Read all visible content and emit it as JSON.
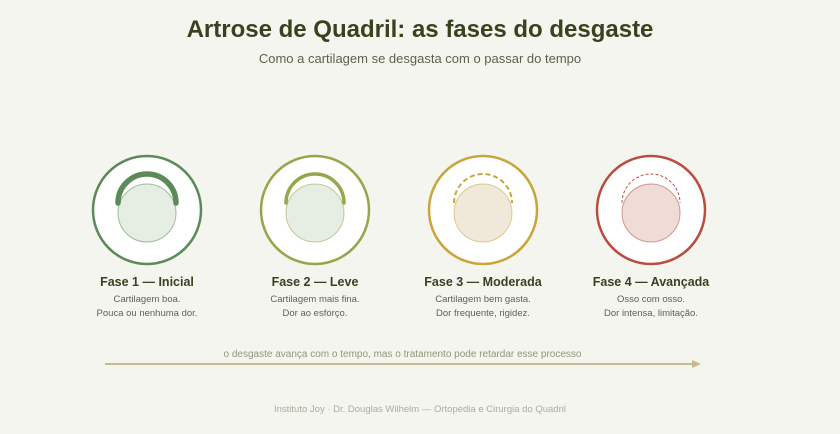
{
  "title": "Artrose de Quadril: as fases do desgaste",
  "subtitle": "Como a cartilagem se desgasta com o passar do tempo",
  "stages": [
    {
      "title": "Fase 1 — Inicial",
      "line1": "Cartilagem boa.",
      "line2": "Pouca ou nenhuma dor.",
      "ring_color": "#5c8a58",
      "head_fill": "#e6eee3",
      "arc_color": "#5c8a58",
      "arc_style": "thick"
    },
    {
      "title": "Fase 2 — Leve",
      "line1": "Cartilagem mais fina.",
      "line2": "Dor ao esforço.",
      "ring_color": "#93a84a",
      "head_fill": "#e6eee3",
      "arc_color": "#93a84a",
      "arc_style": "thin"
    },
    {
      "title": "Fase 3 — Moderada",
      "line1": "Cartilagem bem gasta.",
      "line2": "Dor frequente, rigidez.",
      "ring_color": "#c9a53a",
      "head_fill": "#f0e8d8",
      "arc_color": "#c9a53a",
      "arc_style": "dashed"
    },
    {
      "title": "Fase 4 — Avançada",
      "line1": "Osso com osso.",
      "line2": "Dor intensa, limitação.",
      "ring_color": "#b84e3f",
      "head_fill": "#f0dcd6",
      "arc_color": "#b84e3f",
      "arc_style": "faint"
    }
  ],
  "progress_label": "o desgaste avança com o tempo, mas o tratamento pode retardar esse processo",
  "arrow_color": "#c8b98e",
  "footer": "Instituto Joy · Dr. Douglas Wilhelm — Ortopedia e Cirurgia do Quadril"
}
